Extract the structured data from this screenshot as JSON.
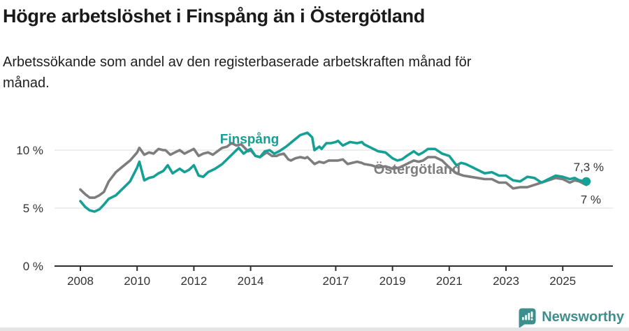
{
  "header": {
    "title": "Högre arbetslöshet i Finspång än i Östergötland",
    "subtitle_lines": [
      "Arbetssökande som andel av den registerbaserade arbetskraften månad för",
      "månad."
    ]
  },
  "chart_data": {
    "type": "line",
    "title": "Högre arbetslöshet i Finspång än i Östergötland",
    "subtitle": "Arbetssökande som andel av den registerbaserade arbetskraften månad för månad.",
    "unit": "%",
    "ylim": [
      0,
      13.5
    ],
    "xlim": [
      2007.1,
      2026.8
    ],
    "grid": "horizontal-only",
    "legend": "inline-series-labels",
    "style": {
      "axis_color": "#2e2e2e",
      "grid_color": "#dcdcdc",
      "tick_text_color": "#333333",
      "line_width": 3.6
    },
    "y_ticks": [
      {
        "value": 0,
        "label": "0 %"
      },
      {
        "value": 5,
        "label": "5 %"
      },
      {
        "value": 10,
        "label": "10 %"
      }
    ],
    "grid_values": [
      5,
      10
    ],
    "x_ticks": [
      {
        "value": 2008,
        "label": "2008"
      },
      {
        "value": 2010,
        "label": "2010"
      },
      {
        "value": 2012,
        "label": "2012"
      },
      {
        "value": 2014,
        "label": "2014"
      },
      {
        "value": 2017,
        "label": "2017"
      },
      {
        "value": 2019,
        "label": "2019"
      },
      {
        "value": 2021,
        "label": "2021"
      },
      {
        "value": 2023,
        "label": "2023"
      },
      {
        "value": 2025,
        "label": "2025"
      }
    ],
    "series": [
      {
        "id": "ostergotland",
        "name": "Östergötland",
        "color": "#7d7d7d",
        "end_label": "7 %",
        "end_value": 7.0,
        "end_dot": false,
        "points": [
          [
            2008.0,
            6.6
          ],
          [
            2008.17,
            6.2
          ],
          [
            2008.33,
            5.9
          ],
          [
            2008.5,
            5.9
          ],
          [
            2008.67,
            6.1
          ],
          [
            2008.83,
            6.4
          ],
          [
            2009.0,
            7.3
          ],
          [
            2009.25,
            8.1
          ],
          [
            2009.5,
            8.6
          ],
          [
            2009.75,
            9.1
          ],
          [
            2010.0,
            9.8
          ],
          [
            2010.08,
            10.2
          ],
          [
            2010.25,
            9.6
          ],
          [
            2010.42,
            9.8
          ],
          [
            2010.58,
            9.7
          ],
          [
            2010.75,
            10.1
          ],
          [
            2010.92,
            10.0
          ],
          [
            2011.0,
            10.0
          ],
          [
            2011.17,
            9.6
          ],
          [
            2011.33,
            9.8
          ],
          [
            2011.5,
            10.0
          ],
          [
            2011.67,
            9.7
          ],
          [
            2011.83,
            9.9
          ],
          [
            2012.0,
            10.1
          ],
          [
            2012.17,
            9.5
          ],
          [
            2012.33,
            9.7
          ],
          [
            2012.5,
            9.8
          ],
          [
            2012.67,
            9.6
          ],
          [
            2012.83,
            9.9
          ],
          [
            2013.0,
            10.2
          ],
          [
            2013.17,
            10.3
          ],
          [
            2013.33,
            10.6
          ],
          [
            2013.5,
            10.4
          ],
          [
            2013.67,
            10.5
          ],
          [
            2013.83,
            10.1
          ],
          [
            2013.92,
            9.9
          ],
          [
            2014.0,
            10.0
          ],
          [
            2014.17,
            9.5
          ],
          [
            2014.33,
            9.4
          ],
          [
            2014.5,
            9.7
          ],
          [
            2014.58,
            9.8
          ],
          [
            2014.75,
            9.5
          ],
          [
            2014.92,
            9.5
          ],
          [
            2015.0,
            9.6
          ],
          [
            2015.17,
            9.7
          ],
          [
            2015.33,
            9.2
          ],
          [
            2015.42,
            9.1
          ],
          [
            2015.58,
            9.3
          ],
          [
            2015.75,
            9.4
          ],
          [
            2015.92,
            9.3
          ],
          [
            2016.0,
            9.4
          ],
          [
            2016.17,
            9.0
          ],
          [
            2016.25,
            8.8
          ],
          [
            2016.42,
            9.0
          ],
          [
            2016.58,
            8.9
          ],
          [
            2016.75,
            9.1
          ],
          [
            2016.92,
            9.1
          ],
          [
            2017.08,
            9.1
          ],
          [
            2017.25,
            9.2
          ],
          [
            2017.42,
            8.8
          ],
          [
            2017.58,
            8.9
          ],
          [
            2017.75,
            9.0
          ],
          [
            2017.92,
            8.9
          ],
          [
            2018.0,
            8.8
          ],
          [
            2018.25,
            8.7
          ],
          [
            2018.5,
            8.5
          ],
          [
            2018.75,
            8.6
          ],
          [
            2019.0,
            8.4
          ],
          [
            2019.25,
            8.5
          ],
          [
            2019.5,
            8.8
          ],
          [
            2019.75,
            9.1
          ],
          [
            2019.92,
            9.0
          ],
          [
            2020.08,
            9.1
          ],
          [
            2020.25,
            9.4
          ],
          [
            2020.5,
            9.4
          ],
          [
            2020.75,
            9.1
          ],
          [
            2021.0,
            8.5
          ],
          [
            2021.25,
            8.0
          ],
          [
            2021.5,
            7.8
          ],
          [
            2021.75,
            7.7
          ],
          [
            2022.0,
            7.6
          ],
          [
            2022.25,
            7.5
          ],
          [
            2022.5,
            7.5
          ],
          [
            2022.75,
            7.2
          ],
          [
            2023.0,
            7.2
          ],
          [
            2023.25,
            6.7
          ],
          [
            2023.5,
            6.8
          ],
          [
            2023.75,
            6.8
          ],
          [
            2024.0,
            7.0
          ],
          [
            2024.25,
            7.2
          ],
          [
            2024.5,
            7.4
          ],
          [
            2024.75,
            7.6
          ],
          [
            2025.0,
            7.5
          ],
          [
            2025.25,
            7.2
          ],
          [
            2025.42,
            7.4
          ],
          [
            2025.58,
            7.3
          ],
          [
            2025.83,
            7.0
          ]
        ]
      },
      {
        "id": "finspang",
        "name": "Finspång",
        "color": "#15a096",
        "end_label": "7,3 %",
        "end_value": 7.3,
        "end_dot": true,
        "points": [
          [
            2008.0,
            5.6
          ],
          [
            2008.17,
            5.1
          ],
          [
            2008.33,
            4.8
          ],
          [
            2008.5,
            4.7
          ],
          [
            2008.67,
            4.9
          ],
          [
            2008.83,
            5.3
          ],
          [
            2009.0,
            5.8
          ],
          [
            2009.25,
            6.1
          ],
          [
            2009.5,
            6.7
          ],
          [
            2009.75,
            7.3
          ],
          [
            2010.0,
            8.5
          ],
          [
            2010.08,
            9.0
          ],
          [
            2010.25,
            7.4
          ],
          [
            2010.42,
            7.6
          ],
          [
            2010.58,
            7.7
          ],
          [
            2010.75,
            8.0
          ],
          [
            2010.92,
            8.2
          ],
          [
            2011.08,
            8.7
          ],
          [
            2011.25,
            8.0
          ],
          [
            2011.5,
            8.4
          ],
          [
            2011.67,
            8.1
          ],
          [
            2011.83,
            8.3
          ],
          [
            2012.0,
            8.7
          ],
          [
            2012.17,
            7.8
          ],
          [
            2012.33,
            7.7
          ],
          [
            2012.5,
            8.1
          ],
          [
            2012.75,
            8.4
          ],
          [
            2013.0,
            8.8
          ],
          [
            2013.25,
            9.4
          ],
          [
            2013.5,
            10.0
          ],
          [
            2013.58,
            10.2
          ],
          [
            2013.75,
            9.7
          ],
          [
            2013.92,
            10.0
          ],
          [
            2014.0,
            10.1
          ],
          [
            2014.17,
            9.5
          ],
          [
            2014.33,
            9.4
          ],
          [
            2014.5,
            9.9
          ],
          [
            2014.67,
            10.0
          ],
          [
            2014.83,
            9.7
          ],
          [
            2015.0,
            9.9
          ],
          [
            2015.25,
            10.3
          ],
          [
            2015.5,
            10.8
          ],
          [
            2015.75,
            11.3
          ],
          [
            2016.0,
            11.5
          ],
          [
            2016.17,
            11.1
          ],
          [
            2016.25,
            10.0
          ],
          [
            2016.42,
            10.3
          ],
          [
            2016.5,
            10.1
          ],
          [
            2016.67,
            10.6
          ],
          [
            2016.83,
            10.6
          ],
          [
            2017.0,
            10.7
          ],
          [
            2017.08,
            10.8
          ],
          [
            2017.25,
            10.4
          ],
          [
            2017.5,
            10.7
          ],
          [
            2017.75,
            10.6
          ],
          [
            2017.92,
            10.7
          ],
          [
            2018.0,
            10.5
          ],
          [
            2018.25,
            10.2
          ],
          [
            2018.5,
            9.9
          ],
          [
            2018.75,
            9.8
          ],
          [
            2019.0,
            9.3
          ],
          [
            2019.17,
            9.1
          ],
          [
            2019.33,
            9.2
          ],
          [
            2019.5,
            9.5
          ],
          [
            2019.75,
            9.9
          ],
          [
            2019.92,
            9.6
          ],
          [
            2020.08,
            9.8
          ],
          [
            2020.25,
            10.1
          ],
          [
            2020.5,
            10.1
          ],
          [
            2020.75,
            9.7
          ],
          [
            2021.0,
            9.5
          ],
          [
            2021.25,
            8.7
          ],
          [
            2021.42,
            8.9
          ],
          [
            2021.58,
            8.8
          ],
          [
            2021.75,
            8.6
          ],
          [
            2022.0,
            8.3
          ],
          [
            2022.25,
            8.0
          ],
          [
            2022.5,
            8.1
          ],
          [
            2022.75,
            7.8
          ],
          [
            2023.0,
            7.8
          ],
          [
            2023.25,
            7.4
          ],
          [
            2023.5,
            7.3
          ],
          [
            2023.75,
            7.7
          ],
          [
            2024.0,
            7.6
          ],
          [
            2024.25,
            7.2
          ],
          [
            2024.5,
            7.5
          ],
          [
            2024.75,
            7.8
          ],
          [
            2025.0,
            7.7
          ],
          [
            2025.25,
            7.5
          ],
          [
            2025.42,
            7.6
          ],
          [
            2025.58,
            7.4
          ],
          [
            2025.83,
            7.3
          ]
        ]
      }
    ],
    "annotations": [
      {
        "text": "Finspång",
        "x": 2013.96,
        "y": 10.96,
        "color": "#15a096",
        "weight": "bold",
        "size": 19,
        "anchor": "middle"
      },
      {
        "text": "Östergötland",
        "x": 2019.87,
        "y": 8.37,
        "color": "#7d7d7d",
        "weight": "bold",
        "size": 20,
        "anchor": "middle"
      },
      {
        "text": "7,3 %",
        "x": 2026.45,
        "y": 8.55,
        "color": "#333333",
        "weight": "normal",
        "size": 17,
        "anchor": "end"
      },
      {
        "text": "7 %",
        "x": 2026.35,
        "y": 5.75,
        "color": "#333333",
        "weight": "normal",
        "size": 17,
        "anchor": "end"
      }
    ]
  },
  "footer": {
    "brand": "Newsworthy",
    "brand_color": "#3d8f8d"
  }
}
